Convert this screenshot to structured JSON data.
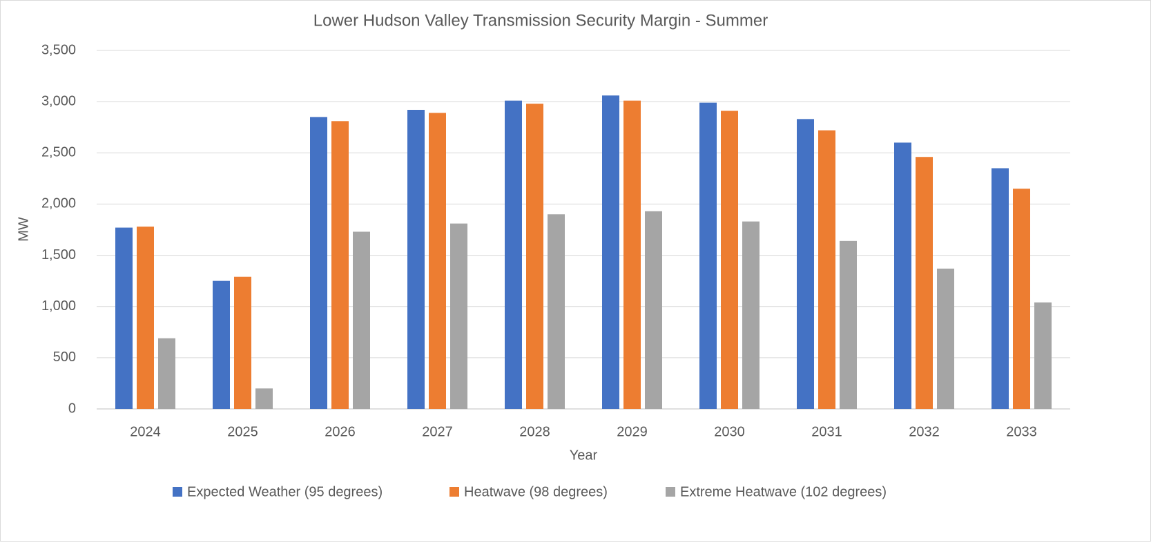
{
  "chart_data": {
    "type": "bar",
    "title": "Lower Hudson Valley Transmission Security Margin  - Summer",
    "x_label": "Year",
    "y_label": "MW",
    "categories": [
      "2024",
      "2025",
      "2026",
      "2027",
      "2028",
      "2029",
      "2030",
      "2031",
      "2032",
      "2033"
    ],
    "series": [
      {
        "name": "Expected Weather (95 degrees)",
        "color": "#4472c4",
        "values": [
          1770,
          1250,
          2850,
          2920,
          3010,
          3060,
          2990,
          2830,
          2600,
          2350
        ]
      },
      {
        "name": "Heatwave (98 degrees)",
        "color": "#ed7d31",
        "values": [
          1780,
          1290,
          2810,
          2890,
          2980,
          3010,
          2910,
          2720,
          2460,
          2150
        ]
      },
      {
        "name": "Extreme Heatwave (102 degrees)",
        "color": "#a5a5a5",
        "values": [
          690,
          200,
          1730,
          1810,
          1900,
          1930,
          1830,
          1640,
          1370,
          1040
        ]
      }
    ],
    "ylim": [
      0,
      3500
    ],
    "yticks": [
      0,
      500,
      {
        "value": 1000,
        "label": "1,000"
      },
      {
        "value": 1500,
        "label": "1,500"
      },
      {
        "value": 2000,
        "label": "2,000"
      },
      {
        "value": 2500,
        "label": "2,500"
      },
      {
        "value": 3000,
        "label": "3,000"
      },
      {
        "value": 3500,
        "label": "3,500"
      }
    ],
    "grid": true,
    "legend": "bottom"
  }
}
